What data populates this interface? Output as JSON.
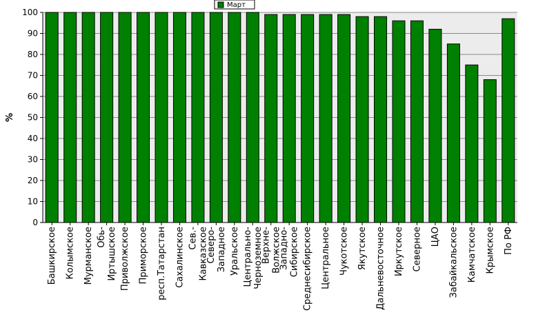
{
  "chart_data": {
    "type": "bar",
    "title": "",
    "xlabel": "",
    "ylabel": "%",
    "ylim": [
      0,
      100
    ],
    "yticks": [
      0,
      10,
      20,
      30,
      40,
      50,
      60,
      70,
      80,
      90,
      100
    ],
    "grid": true,
    "legend_position": "top-center",
    "categories": [
      [
        "Башкирское"
      ],
      [
        "Колымское"
      ],
      [
        "Мурманское"
      ],
      [
        "Обь-",
        "Иртышское"
      ],
      [
        "Приволжское"
      ],
      [
        "Приморское"
      ],
      [
        "респ.Татарстан"
      ],
      [
        "Сахалинское"
      ],
      [
        "Сев.-",
        "Кавказское"
      ],
      [
        "Северо-",
        "Западное"
      ],
      [
        "Уральское"
      ],
      [
        "Центрально-",
        "Черноземное"
      ],
      [
        "Верхне-",
        "Волжское"
      ],
      [
        "Западно-",
        "Сибирское"
      ],
      [
        "Среднесибирское"
      ],
      [
        "Центральное"
      ],
      [
        "Чукотское"
      ],
      [
        "Якутское"
      ],
      [
        "Дальневосточное"
      ],
      [
        "Иркутское"
      ],
      [
        "Северное"
      ],
      [
        "ЦАО"
      ],
      [
        "Забайкальское"
      ],
      [
        "Камчатское"
      ],
      [
        "Крымское"
      ],
      [
        "По РФ"
      ]
    ],
    "series": [
      {
        "name": "Март",
        "color": "#008000",
        "values": [
          100,
          100,
          100,
          100,
          100,
          100,
          100,
          100,
          100,
          100,
          100,
          100,
          99,
          99,
          99,
          99,
          99,
          98,
          98,
          96,
          96,
          92,
          85,
          75,
          68,
          97
        ]
      }
    ]
  }
}
